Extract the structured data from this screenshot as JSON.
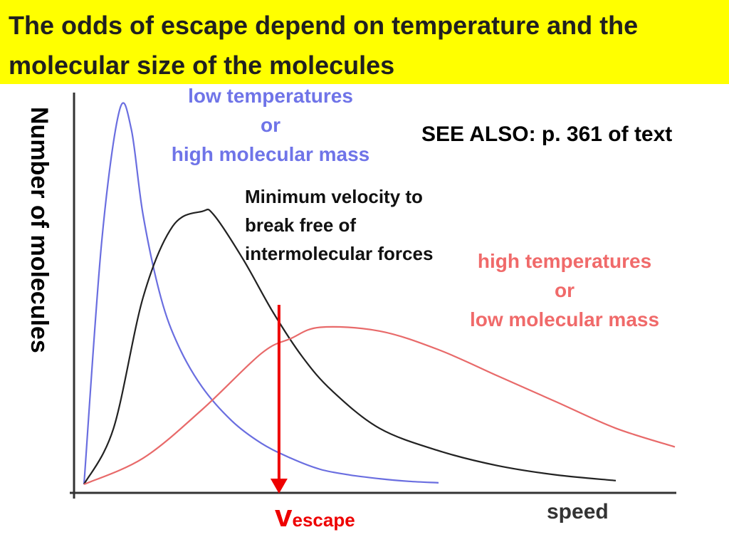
{
  "slide": {
    "title": "The odds of escape depend on temperature and the molecular size of the molecules",
    "see_also": "SEE ALSO: p. 361 of text",
    "annotation": "Minimum  velocity to break free of intermolecular forces",
    "escape_symbol": "v",
    "escape_subscript": "escape"
  },
  "colors": {
    "title_background": "#ffff00",
    "low_temp_curve": "#6a6ee0",
    "mid_curve": "#222222",
    "high_temp_curve": "#e86a6a",
    "escape_arrow": "#ee0000"
  },
  "chart_data": {
    "type": "line",
    "xlabel": "speed",
    "ylabel": "Number of molecules",
    "xlim": [
      0,
      1
    ],
    "ylim": [
      0,
      1
    ],
    "grid": false,
    "axis_ticks": false,
    "series": [
      {
        "name": "low temperatures or high molecular mass",
        "label_lines": [
          "low temperatures",
          "or",
          "high molecular mass"
        ],
        "color": "#6a6ee0",
        "x": [
          0.0,
          0.03,
          0.06,
          0.08,
          0.1,
          0.13,
          0.16,
          0.2,
          0.25,
          0.3,
          0.35,
          0.4,
          0.45,
          0.5,
          0.55,
          0.6
        ],
        "y": [
          0.0,
          0.65,
          1.0,
          0.95,
          0.72,
          0.5,
          0.37,
          0.26,
          0.17,
          0.11,
          0.07,
          0.04,
          0.025,
          0.015,
          0.008,
          0.004
        ]
      },
      {
        "name": "",
        "color": "#222222",
        "x": [
          0.0,
          0.05,
          0.1,
          0.15,
          0.2,
          0.22,
          0.27,
          0.32,
          0.37,
          0.42,
          0.5,
          0.6,
          0.7,
          0.8,
          0.9
        ],
        "y": [
          0.0,
          0.15,
          0.5,
          0.69,
          0.73,
          0.72,
          0.6,
          0.46,
          0.34,
          0.25,
          0.15,
          0.09,
          0.05,
          0.025,
          0.01
        ]
      },
      {
        "name": "high temperatures or low molecular mass",
        "label_lines": [
          "high temperatures",
          "or",
          "low molecular mass"
        ],
        "color": "#e86a6a",
        "x": [
          0.0,
          0.1,
          0.2,
          0.3,
          0.35,
          0.4,
          0.5,
          0.6,
          0.7,
          0.8,
          0.9,
          1.0
        ],
        "y": [
          0.0,
          0.07,
          0.2,
          0.35,
          0.39,
          0.42,
          0.41,
          0.36,
          0.29,
          0.22,
          0.15,
          0.1
        ]
      }
    ],
    "annotations": [
      {
        "type": "vertical-arrow",
        "label": "v escape",
        "x": 0.33,
        "y_from": 0.48,
        "y_to": 0.0
      }
    ]
  }
}
